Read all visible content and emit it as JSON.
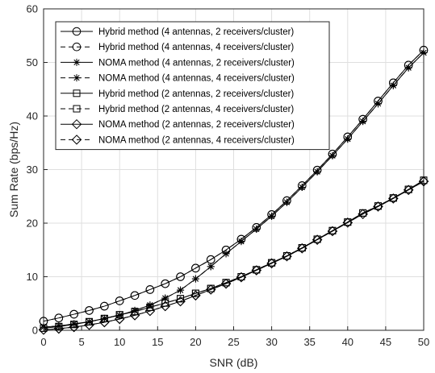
{
  "chart_data": {
    "type": "line",
    "title": "",
    "xlabel": "SNR (dB)",
    "ylabel": "Sum Rate (bps/Hz)",
    "xlim": [
      0,
      50
    ],
    "ylim": [
      0,
      60
    ],
    "xticks": [
      0,
      5,
      10,
      15,
      20,
      25,
      30,
      35,
      40,
      45,
      50
    ],
    "yticks": [
      0,
      10,
      20,
      30,
      40,
      50,
      60
    ],
    "grid": true,
    "legend_position": "top-left",
    "x": [
      0,
      2,
      4,
      6,
      8,
      10,
      12,
      14,
      16,
      18,
      20,
      22,
      24,
      26,
      28,
      30,
      32,
      34,
      36,
      38,
      40,
      42,
      44,
      46,
      48,
      50
    ],
    "series": [
      {
        "name": "Hybrid method (4 antennas, 2 receivers/cluster)",
        "line": "solid",
        "marker": "circle",
        "values": [
          1.7,
          2.3,
          3.0,
          3.7,
          4.5,
          5.5,
          6.5,
          7.6,
          8.7,
          10.0,
          11.6,
          13.2,
          15.0,
          17.0,
          19.2,
          21.6,
          24.2,
          27.0,
          29.9,
          32.9,
          36.1,
          39.4,
          42.8,
          46.2,
          49.5,
          52.3
        ]
      },
      {
        "name": "Hybrid method (4 antennas, 4 receivers/cluster)",
        "line": "dashed",
        "marker": "circle",
        "values": [
          1.7,
          2.3,
          3.0,
          3.7,
          4.5,
          5.5,
          6.5,
          7.6,
          8.7,
          10.0,
          11.6,
          13.2,
          15.0,
          17.0,
          19.2,
          21.6,
          24.2,
          27.0,
          29.9,
          32.9,
          36.1,
          39.4,
          42.8,
          46.2,
          49.5,
          52.3
        ]
      },
      {
        "name": "NOMA method (4 antennas, 2 receivers/cluster)",
        "line": "solid",
        "marker": "asterisk",
        "values": [
          0.6,
          0.8,
          1.2,
          1.6,
          2.2,
          2.8,
          3.7,
          4.7,
          6.0,
          7.5,
          9.6,
          11.9,
          14.3,
          16.6,
          18.9,
          21.3,
          23.9,
          26.7,
          29.6,
          32.6,
          35.7,
          39.0,
          42.3,
          45.7,
          49.0,
          51.8
        ]
      },
      {
        "name": "NOMA method (4 antennas, 4 receivers/cluster)",
        "line": "dashed",
        "marker": "asterisk",
        "values": [
          0.6,
          0.8,
          1.2,
          1.6,
          2.2,
          2.8,
          3.7,
          4.7,
          6.0,
          7.5,
          9.6,
          11.9,
          14.3,
          16.6,
          18.9,
          21.3,
          23.9,
          26.7,
          29.6,
          32.6,
          35.7,
          39.0,
          42.3,
          45.7,
          49.0,
          51.8
        ]
      },
      {
        "name": "Hybrid method (2 antennas, 2 receivers/cluster)",
        "line": "solid",
        "marker": "square",
        "values": [
          0.4,
          0.7,
          1.1,
          1.6,
          2.2,
          2.9,
          3.5,
          4.3,
          5.1,
          5.9,
          6.9,
          7.8,
          8.9,
          10.0,
          11.3,
          12.6,
          13.9,
          15.4,
          17.0,
          18.6,
          20.2,
          21.9,
          23.2,
          24.7,
          26.3,
          28.0
        ]
      },
      {
        "name": "Hybrid method (2 antennas, 4 receivers/cluster)",
        "line": "dashed",
        "marker": "square",
        "values": [
          0.4,
          0.7,
          1.1,
          1.6,
          2.2,
          2.9,
          3.5,
          4.3,
          5.1,
          5.9,
          6.9,
          7.8,
          8.9,
          10.0,
          11.3,
          12.6,
          13.9,
          15.4,
          17.0,
          18.6,
          20.2,
          21.9,
          23.2,
          24.7,
          26.3,
          28.0
        ]
      },
      {
        "name": "NOMA method (2 antennas, 2 receivers/cluster)",
        "line": "solid",
        "marker": "diamond",
        "values": [
          0.1,
          0.3,
          0.6,
          1.0,
          1.5,
          2.1,
          2.8,
          3.6,
          4.5,
          5.4,
          6.5,
          7.6,
          8.7,
          9.9,
          11.2,
          12.5,
          13.8,
          15.3,
          16.9,
          18.5,
          20.1,
          21.7,
          23.1,
          24.6,
          26.2,
          27.8
        ]
      },
      {
        "name": "NOMA method (2 antennas, 4 receivers/cluster)",
        "line": "dashed",
        "marker": "diamond",
        "values": [
          0.1,
          0.3,
          0.6,
          1.0,
          1.5,
          2.1,
          2.8,
          3.6,
          4.5,
          5.4,
          6.5,
          7.6,
          8.7,
          9.9,
          11.2,
          12.5,
          13.8,
          15.3,
          16.9,
          18.5,
          20.1,
          21.7,
          23.1,
          24.6,
          26.2,
          27.8
        ]
      }
    ]
  }
}
